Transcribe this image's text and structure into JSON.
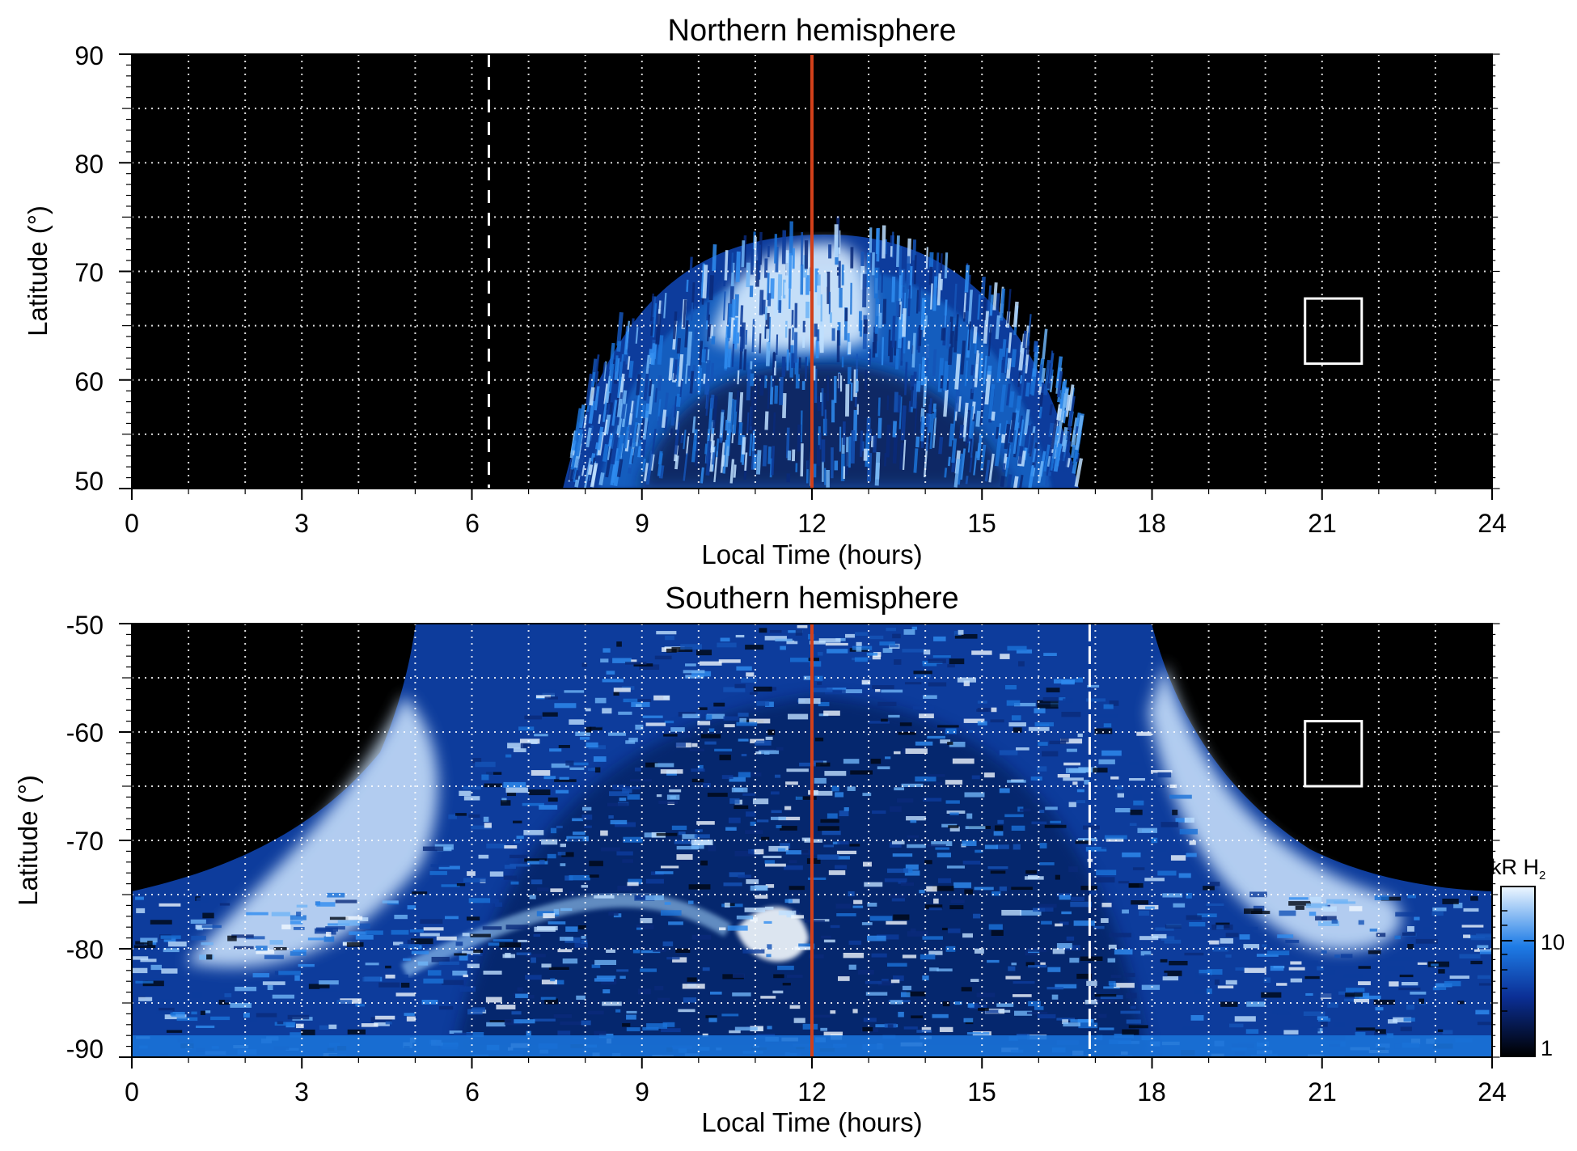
{
  "chart_data": [
    {
      "type": "heatmap",
      "title": "Northern hemisphere",
      "xlabel": "Local Time (hours)",
      "ylabel": "Latitude (°)",
      "xlim": [
        0,
        24
      ],
      "ylim": [
        50,
        90
      ],
      "x_ticks": [
        "0",
        "3",
        "6",
        "9",
        "12",
        "15",
        "18",
        "21",
        "24"
      ],
      "y_ticks": [
        "50",
        "60",
        "70",
        "80",
        "90"
      ],
      "grid": "dotted white, every 1 h and 5°",
      "emission_region": {
        "lt_start": 7.6,
        "lt_end": 16.7,
        "lat_peak": 73
      },
      "bright_band": {
        "lt_start": 10.6,
        "lt_end": 12.8,
        "lat_min": 63,
        "lat_max": 73
      },
      "noon_line_lt": 12,
      "dashed_line_lt": 6.3,
      "box": {
        "lt_start": 20.7,
        "lt_end": 21.7,
        "lat_min": 61.5,
        "lat_max": 67.5
      }
    },
    {
      "type": "heatmap",
      "title": "Southern hemisphere",
      "xlabel": "Local Time (hours)",
      "ylabel": "Latitude (°)",
      "xlim": [
        0,
        24
      ],
      "ylim": [
        -90,
        -50
      ],
      "x_ticks": [
        "0",
        "3",
        "6",
        "9",
        "12",
        "15",
        "18",
        "21",
        "24"
      ],
      "y_ticks": [
        "-50",
        "-60",
        "-70",
        "-80",
        "-90"
      ],
      "grid": "dotted white, every 1 h and 5°",
      "emission_region": {
        "lt_start": 0,
        "lt_end": 24,
        "edge_lat": -75,
        "top_lt_start": 5,
        "top_lt_end": 19
      },
      "bright_oval_lat": -78,
      "noon_line_lt": 12,
      "dashed_line_lt": 16.9,
      "box": {
        "lt_start": 20.7,
        "lt_end": 21.7,
        "lat_min": -65,
        "lat_max": -59
      },
      "colorbar": {
        "label_main": "kR H",
        "label_sub": "2",
        "ticks": [
          "1",
          "10"
        ],
        "scale": "log",
        "range": [
          1,
          30
        ]
      }
    }
  ],
  "colors": {
    "background": "#000000",
    "emission_dark": "#0a2a7a",
    "emission_mid": "#1a72d8",
    "emission_bright": "#dff0ff",
    "noon_line": "#d2401a",
    "grid": "#ffffff"
  }
}
